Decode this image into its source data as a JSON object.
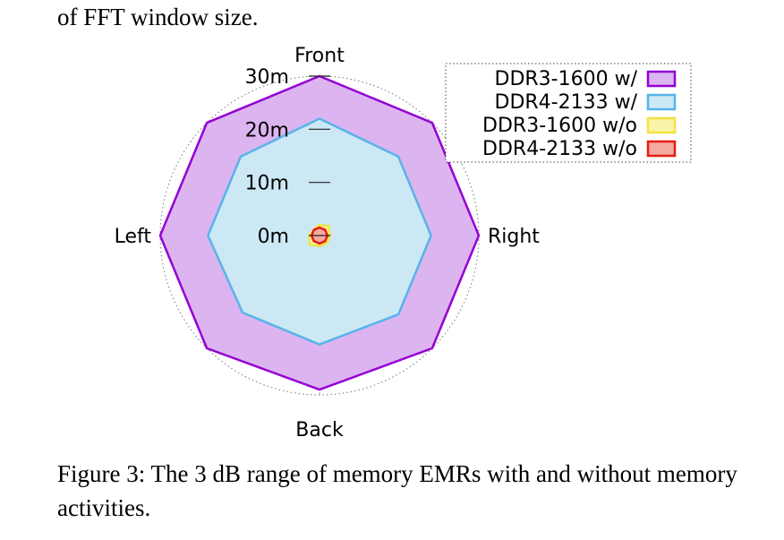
{
  "top_text": "of FFT window size.",
  "caption": "Figure 3: The 3 dB range of memory EMRs with and without memory activities.",
  "chart_data": {
    "type": "radar",
    "title": "",
    "directions": [
      "Front",
      "",
      "Right",
      "",
      "Back",
      "",
      "Left",
      ""
    ],
    "radial_ticks": [
      {
        "value": 0,
        "label": "0m"
      },
      {
        "value": 10,
        "label": "10m"
      },
      {
        "value": 20,
        "label": "20m"
      },
      {
        "value": 30,
        "label": "30m"
      }
    ],
    "rmax": 30,
    "grid": true,
    "legend_position": "top-right",
    "series": [
      {
        "name": "DDR3-1600 w/",
        "color": "#9400d3",
        "fill": "#dcb4f0",
        "values": [
          30,
          30,
          30,
          30,
          29,
          30,
          30,
          30
        ]
      },
      {
        "name": "DDR4-2133 w/",
        "color": "#56b4e9",
        "fill": "#cde8f5",
        "values": [
          22,
          21,
          21,
          21,
          20.5,
          20.5,
          21,
          21
        ]
      },
      {
        "name": "DDR3-1600 w/o",
        "color": "#f0e442",
        "fill": "#faf4a8",
        "values": [
          2.0,
          2.5,
          2.0,
          2.0,
          2.0,
          2.5,
          2.0,
          1.5
        ]
      },
      {
        "name": "DDR4-2133 w/o",
        "color": "#e51e10",
        "fill": "#f4aaa0",
        "values": [
          1.5,
          1.5,
          1.5,
          1.5,
          1.5,
          1.5,
          1.5,
          1.5
        ]
      }
    ]
  }
}
